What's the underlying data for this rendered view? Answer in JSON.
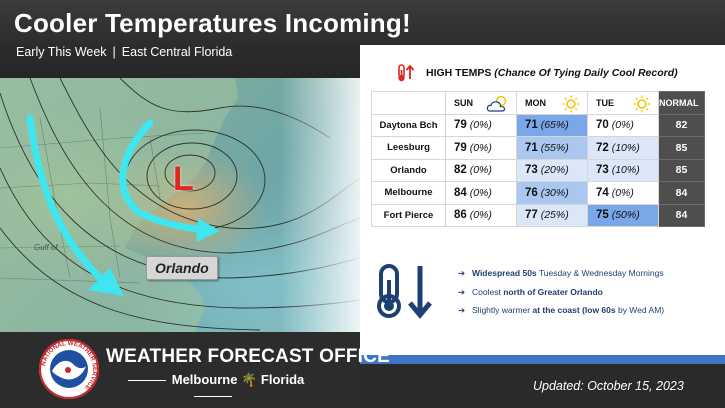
{
  "header": {
    "title": "Cooler Temperatures Incoming!",
    "period": "Early This Week",
    "separator": "|",
    "region": "East Central Florida"
  },
  "map": {
    "low_symbol": "L",
    "city_label": "Orlando",
    "water_label": "Gulf of"
  },
  "table": {
    "title": "HIGH TEMPS",
    "note": "(Chance Of Tying Daily Cool Record)",
    "headers": [
      "SUN",
      "MON",
      "TUE",
      "NORMAL"
    ],
    "header_icons": [
      "partly-cloudy-icon",
      "sun-icon",
      "sun-icon"
    ],
    "rows": [
      {
        "city": "Daytona Bch",
        "sun": "79",
        "sun_pct": "(0%)",
        "mon": "71",
        "mon_pct": "(65%)",
        "tue": "70",
        "tue_pct": "(0%)",
        "normal": "82"
      },
      {
        "city": "Leesburg",
        "sun": "79",
        "sun_pct": "(0%)",
        "mon": "71",
        "mon_pct": "(55%)",
        "tue": "72",
        "tue_pct": "(10%)",
        "normal": "85"
      },
      {
        "city": "Orlando",
        "sun": "82",
        "sun_pct": "(0%)",
        "mon": "73",
        "mon_pct": "(20%)",
        "tue": "73",
        "tue_pct": "(10%)",
        "normal": "85"
      },
      {
        "city": "Melbourne",
        "sun": "84",
        "sun_pct": "(0%)",
        "mon": "76",
        "mon_pct": "(30%)",
        "tue": "74",
        "tue_pct": "(0%)",
        "normal": "84"
      },
      {
        "city": "Fort Pierce",
        "sun": "86",
        "sun_pct": "(0%)",
        "mon": "77",
        "mon_pct": "(25%)",
        "tue": "75",
        "tue_pct": "(50%)",
        "normal": "84"
      }
    ]
  },
  "bullets": [
    {
      "arrow": "➔",
      "bold": "Widespread 50s",
      "text": " Tuesday & Wednesday Mornings"
    },
    {
      "arrow": "➔",
      "pre": "Coolest ",
      "bold": "north of Greater Orlando"
    },
    {
      "arrow": "➔",
      "pre": "Slightly warmer ",
      "bold": "at the coast (low 60s",
      "text": " by Wed AM)"
    }
  ],
  "footer": {
    "office": "WEATHER FORECAST OFFICE",
    "city": "Melbourne",
    "state": "Florida",
    "palm": "🌴",
    "updated": "Updated: October 15, 2023",
    "logo_text": "NATIONAL WEATHER SERVICE"
  },
  "colors": {
    "accent_blue": "#3f74c7",
    "record_high": "#7aa7e8",
    "record_mid": "#a9c7ef",
    "record_low": "#dbe7f8",
    "low_red": "#e0281f",
    "arrow_cyan": "#3ee6f0"
  }
}
